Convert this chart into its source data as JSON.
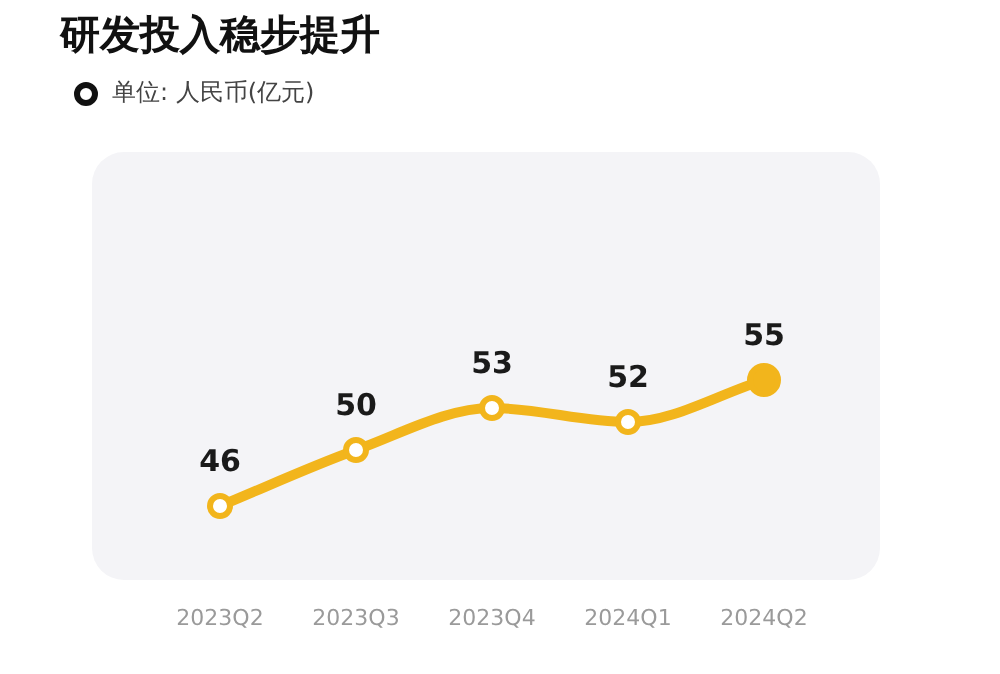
{
  "chart_data": {
    "type": "line",
    "title": "研发投入稳步提升",
    "subtitle": "单位: 人民币(亿元)",
    "categories": [
      "2023Q2",
      "2023Q3",
      "2023Q4",
      "2024Q1",
      "2024Q2"
    ],
    "series": [
      {
        "color": "#f2b51c",
        "values": [
          46,
          50,
          53,
          52,
          55
        ]
      }
    ],
    "data_labels": true,
    "grid": false,
    "legend": false,
    "marker": "circle",
    "line_style": "solid"
  }
}
